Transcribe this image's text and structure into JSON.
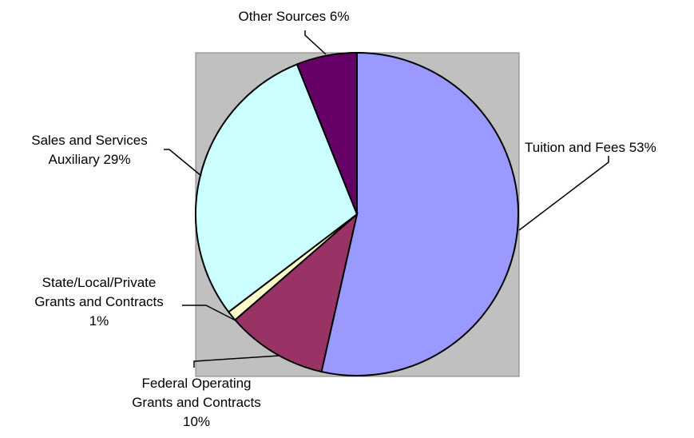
{
  "chart_data": {
    "type": "pie",
    "title": "",
    "slices": [
      {
        "label": "Tuition and Fees",
        "value": 53,
        "display": "Tuition and Fees 53%",
        "color": "#9999ff"
      },
      {
        "label": "Federal Operating Grants and Contracts",
        "value": 10,
        "display": "Federal Operating Grants and Contracts 10%",
        "color": "#993366"
      },
      {
        "label": "State/Local/Private Grants and Contracts",
        "value": 1,
        "display": "State/Local/Private Grants and Contracts 1%",
        "color": "#ffffcc"
      },
      {
        "label": "Sales and Services Auxiliary",
        "value": 29,
        "display": "Sales and Services Auxiliary 29%",
        "color": "#ccffff"
      },
      {
        "label": "Other Sources",
        "value": 6,
        "display": "Other Sources 6%",
        "color": "#660066"
      }
    ],
    "plot_area_color": "#c0c0c0",
    "legend": "none"
  }
}
